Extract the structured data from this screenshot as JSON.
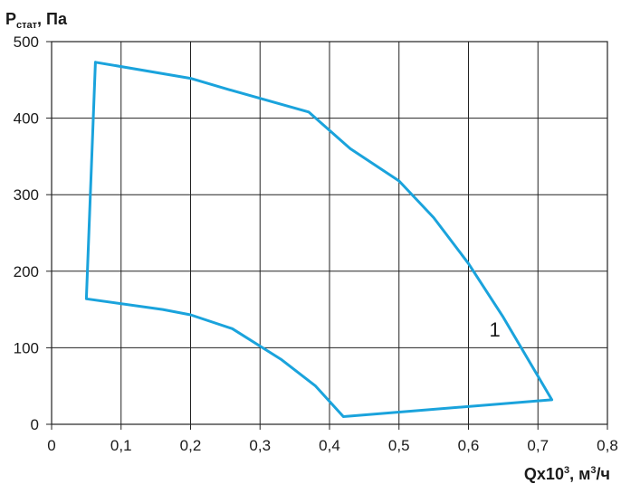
{
  "chart_data": {
    "type": "line",
    "ylabel_main": "P",
    "ylabel_sub": "стат",
    "ylabel_unit": ", Па",
    "xlabel_main": "Qx10",
    "xlabel_exp": "3",
    "xlabel_unit_pre": ", м",
    "xlabel_unit_exp": "3",
    "xlabel_unit_post": "/ч",
    "xlim": [
      0,
      0.8
    ],
    "ylim": [
      0,
      500
    ],
    "grid": true,
    "x_ticks": [
      0,
      0.1,
      0.2,
      0.3,
      0.4,
      0.5,
      0.6,
      0.7,
      0.8
    ],
    "x_tick_labels": [
      "0",
      "0,1",
      "0,2",
      "0,3",
      "0,4",
      "0,5",
      "0,6",
      "0,7",
      "0,8"
    ],
    "y_ticks": [
      0,
      100,
      200,
      300,
      400,
      500
    ],
    "y_tick_labels": [
      "0",
      "100",
      "200",
      "300",
      "400",
      "500"
    ],
    "series": [
      {
        "name": "1",
        "color": "#1aa3dc",
        "x": [
          0.063,
          0.2,
          0.26,
          0.37,
          0.43,
          0.5,
          0.55,
          0.6,
          0.65,
          0.72,
          0.42,
          0.38,
          0.33,
          0.26,
          0.2,
          0.16,
          0.05,
          0.063
        ],
        "y": [
          473,
          452,
          436,
          408,
          360,
          318,
          270,
          210,
          140,
          32,
          10,
          50,
          85,
          125,
          143,
          150,
          164,
          473
        ]
      }
    ],
    "annotations": [
      {
        "text": "1",
        "x": 0.63,
        "y": 124
      }
    ]
  }
}
